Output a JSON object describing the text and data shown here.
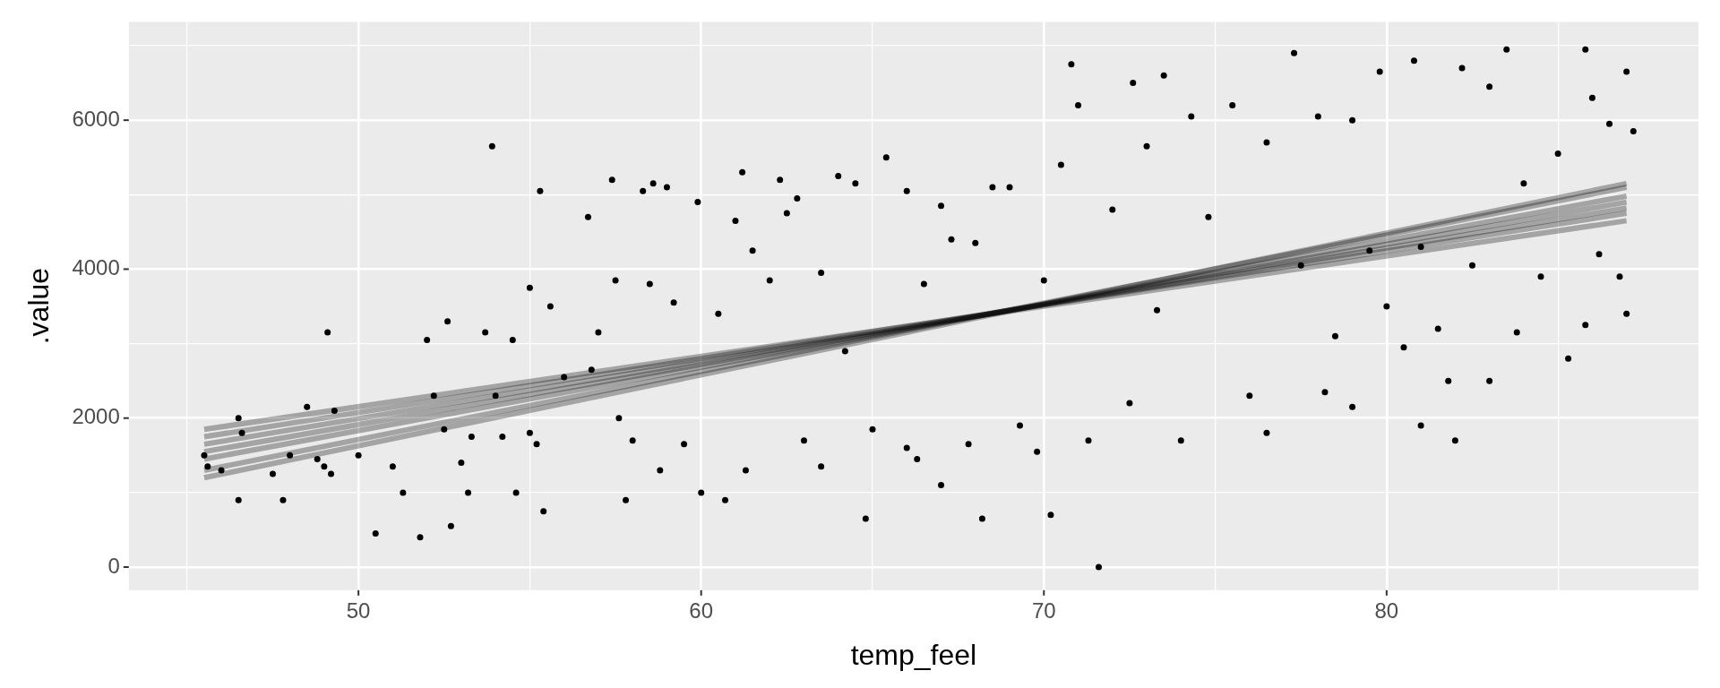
{
  "chart_data": {
    "type": "scatter",
    "xlabel": "temp_feel",
    "ylabel": ".value",
    "xlim": [
      43.3,
      89.1
    ],
    "ylim": [
      -310,
      7320
    ],
    "xticks": [
      {
        "value": 45,
        "label": null
      },
      50,
      {
        "value": 55,
        "label": null
      },
      60,
      {
        "value": 65,
        "label": null
      },
      70,
      {
        "value": 75,
        "label": null
      },
      80,
      {
        "value": 85,
        "label": null
      }
    ],
    "yticks": [
      0,
      {
        "value": 1000,
        "label": null
      },
      2000,
      {
        "value": 3000,
        "label": null
      },
      4000,
      {
        "value": 5000,
        "label": null
      },
      6000,
      {
        "value": 7000,
        "label": null
      }
    ],
    "grid": true,
    "legend": false,
    "series": [
      {
        "marker": "circle",
        "color": "#000000",
        "x": [
          45.5,
          45.6,
          46,
          46.5,
          46.6,
          46.5,
          47.5,
          47.8,
          48,
          48.5,
          48.8,
          49,
          49.1,
          49.2,
          49.3,
          50,
          50.5,
          51,
          51.3,
          51.8,
          52,
          52.2,
          52.5,
          52.6,
          52.7,
          53,
          53.2,
          53.3,
          53.7,
          53.9,
          54,
          54.2,
          54.5,
          54.6,
          55,
          55,
          55.2,
          55.3,
          55.4,
          55.6,
          56,
          56.7,
          56.8,
          57,
          57.4,
          57.5,
          57.6,
          57.8,
          58,
          58.3,
          58.5,
          58.6,
          58.8,
          59,
          59.2,
          59.5,
          59.9,
          60,
          60.5,
          60.7,
          61,
          61.2,
          61.3,
          61.5,
          62,
          62.3,
          62.5,
          62.8,
          63,
          63.5,
          63.5,
          64,
          64.2,
          64.5,
          64.8,
          65,
          65.4,
          66,
          66,
          66.3,
          66.5,
          67,
          67,
          67.3,
          67.8,
          68,
          68.2,
          68.5,
          69,
          69.3,
          69.8,
          70,
          70.2,
          70.5,
          70.8,
          71,
          71.3,
          71.6,
          72,
          72.5,
          72.6,
          73,
          73.3,
          73.5,
          74,
          74.3,
          74.8,
          75.5,
          76,
          76.5,
          76.5,
          77.3,
          77.5,
          78,
          78.2,
          78.5,
          79,
          79,
          79.5,
          79.8,
          80,
          80.5,
          80.8,
          81,
          81,
          81.5,
          81.8,
          82,
          82.2,
          82.5,
          83,
          83,
          83.5,
          83.8,
          84,
          84.5,
          85,
          85.3,
          85.8,
          85.8,
          86,
          86.2,
          86.5,
          86.8,
          87,
          87,
          87.2
        ],
        "values": [
          1500,
          1350,
          1300,
          2000,
          1800,
          900,
          1250,
          900,
          1500,
          2150,
          1450,
          1350,
          3150,
          1250,
          2100,
          1500,
          450,
          1350,
          1000,
          400,
          3050,
          2300,
          1850,
          3300,
          550,
          1400,
          1000,
          1750,
          3150,
          5650,
          2300,
          1750,
          3050,
          1000,
          3750,
          1800,
          1650,
          5050,
          750,
          3500,
          2550,
          4700,
          2650,
          3150,
          5200,
          3850,
          2000,
          900,
          1700,
          5050,
          3800,
          5150,
          1300,
          5100,
          3550,
          1650,
          4900,
          1000,
          3400,
          900,
          4650,
          5300,
          1300,
          4250,
          3850,
          5200,
          4750,
          4950,
          1700,
          3950,
          1350,
          5250,
          2900,
          5150,
          650,
          1850,
          5500,
          1600,
          5050,
          1450,
          3800,
          4850,
          1100,
          4400,
          1650,
          4350,
          650,
          5100,
          5100,
          1900,
          1550,
          3850,
          700,
          5400,
          6750,
          6200,
          1700,
          0,
          4800,
          2200,
          6500,
          5650,
          3450,
          6600,
          1700,
          6050,
          4700,
          6200,
          2300,
          5700,
          1800,
          6900,
          4050,
          6050,
          2350,
          3100,
          2150,
          6000,
          4250,
          6650,
          3500,
          2950,
          6800,
          1900,
          4300,
          3200,
          2500,
          1700,
          6700,
          4050,
          2500,
          6450,
          6950,
          3150,
          5150,
          3900,
          5550,
          2800,
          6950,
          3250,
          6300,
          4200,
          5950,
          3900,
          3400,
          6650,
          5850
        ]
      },
      {
        "type": "line",
        "color": "#000000",
        "x": [
          45.5,
          87
        ],
        "values": [
          1550,
          4900
        ]
      },
      {
        "type": "line",
        "color": "#000000",
        "x": [
          45.5,
          87
        ],
        "values": [
          1450,
          4980
        ]
      },
      {
        "type": "line",
        "color": "#000000",
        "x": [
          45.5,
          87
        ],
        "values": [
          1650,
          4820
        ]
      },
      {
        "type": "line",
        "color": "#000000",
        "x": [
          45.5,
          87
        ],
        "values": [
          1300,
          5100
        ]
      },
      {
        "type": "line",
        "color": "#000000",
        "x": [
          45.5,
          87
        ],
        "values": [
          1850,
          4650
        ]
      },
      {
        "type": "line",
        "color": "#000000",
        "x": [
          45.5,
          87
        ],
        "values": [
          1200,
          5150
        ]
      },
      {
        "type": "line",
        "color": "#000000",
        "x": [
          45.5,
          87
        ],
        "values": [
          1750,
          4750
        ]
      }
    ]
  }
}
